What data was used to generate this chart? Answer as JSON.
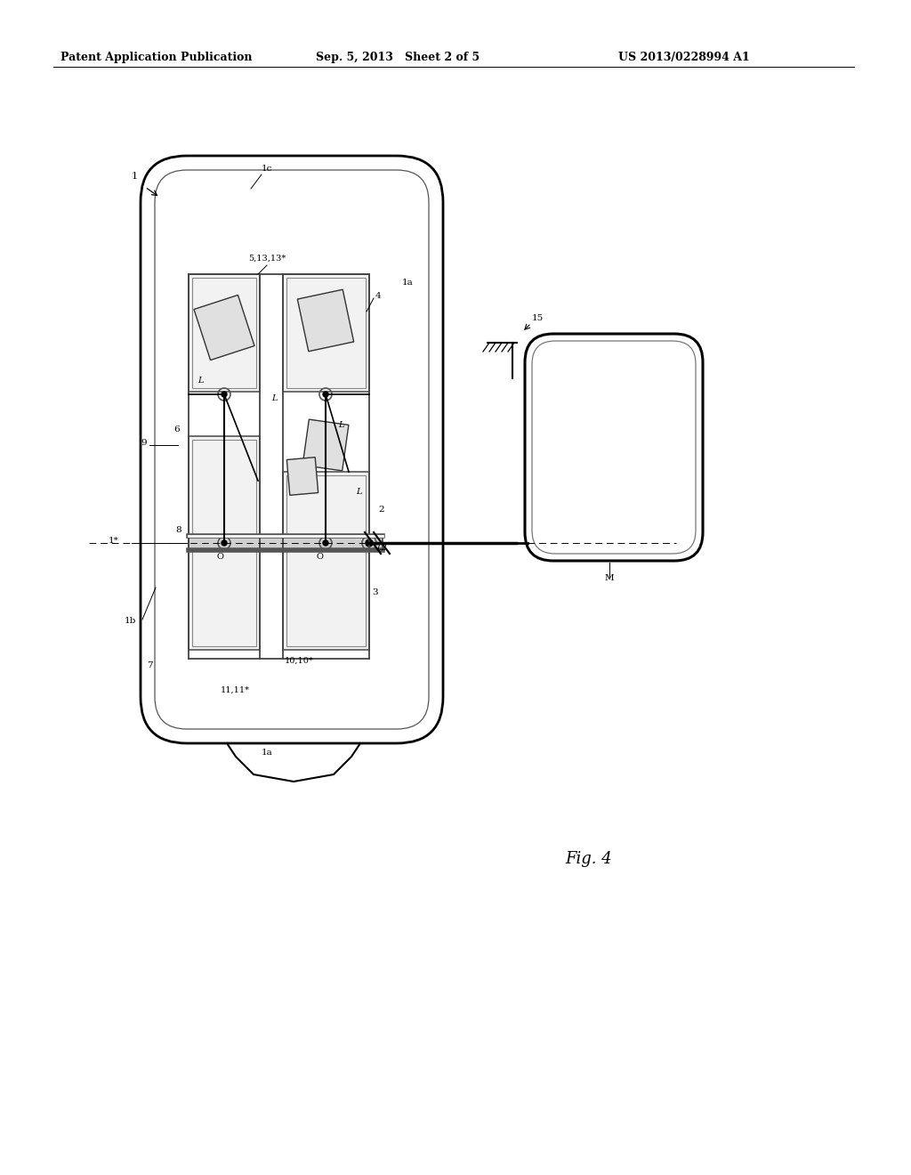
{
  "bg_color": "#ffffff",
  "header_left": "Patent Application Publication",
  "header_mid": "Sep. 5, 2013   Sheet 2 of 5",
  "header_right": "US 2013/0228994 A1",
  "fig_label": "Fig. 4",
  "title_fontsize": 9,
  "body_fontsize": 7.5
}
